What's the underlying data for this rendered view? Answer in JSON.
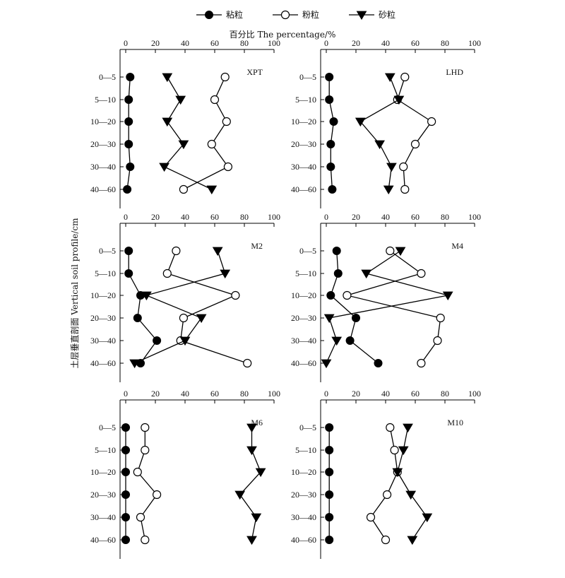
{
  "xlabel": "百分比 The percentage/%",
  "ylabel": "土层垂直剖面 Vertical soil profile/cm",
  "legend": [
    {
      "name": "粘粒",
      "marker": "filled-circle"
    },
    {
      "name": "粉粒",
      "marker": "open-circle"
    },
    {
      "name": "砂粒",
      "marker": "filled-triangle-down"
    }
  ],
  "chart_data": {
    "type": "line",
    "orientation": "vertical-profile",
    "categories": [
      "0—5",
      "5—10",
      "10—20",
      "20—30",
      "30—40",
      "40—60"
    ],
    "xlim": [
      0,
      100
    ],
    "xticks": [
      "0",
      "20",
      "40",
      "60",
      "80",
      "100"
    ],
    "legend_position": "top-center",
    "grid": false,
    "panels": [
      {
        "title": "XPT",
        "series": [
          {
            "name": "粘粒",
            "values": [
              3,
              2,
              2,
              2,
              3,
              1
            ]
          },
          {
            "name": "粉粒",
            "values": [
              67,
              60,
              68,
              58,
              69,
              39
            ]
          },
          {
            "name": "砂粒",
            "values": [
              28,
              37,
              28,
              39,
              26,
              58
            ]
          }
        ]
      },
      {
        "title": "LHD",
        "series": [
          {
            "name": "粘粒",
            "values": [
              2,
              2,
              5,
              3,
              3,
              4
            ]
          },
          {
            "name": "粉粒",
            "values": [
              53,
              48,
              71,
              60,
              52,
              53
            ]
          },
          {
            "name": "砂粒",
            "values": [
              43,
              49,
              23,
              36,
              44,
              42
            ]
          }
        ]
      },
      {
        "title": "M2",
        "series": [
          {
            "name": "粘粒",
            "values": [
              2,
              2,
              10,
              8,
              21,
              10
            ]
          },
          {
            "name": "粉粒",
            "values": [
              34,
              28,
              74,
              39,
              37,
              82
            ]
          },
          {
            "name": "砂粒",
            "values": [
              62,
              67,
              14,
              51,
              40,
              6
            ]
          }
        ]
      },
      {
        "title": "M4",
        "series": [
          {
            "name": "粘粒",
            "values": [
              7,
              8,
              3,
              20,
              16,
              35
            ]
          },
          {
            "name": "粉粒",
            "values": [
              43,
              64,
              14,
              77,
              75,
              64
            ]
          },
          {
            "name": "砂粒",
            "values": [
              50,
              27,
              82,
              2,
              7,
              0
            ]
          }
        ]
      },
      {
        "title": "M6",
        "series": [
          {
            "name": "粘粒",
            "values": [
              0,
              0,
              0,
              0,
              0,
              0
            ]
          },
          {
            "name": "粉粒",
            "values": [
              13,
              13,
              8,
              21,
              10,
              13
            ]
          },
          {
            "name": "砂粒",
            "values": [
              85,
              85,
              91,
              77,
              88,
              85
            ]
          }
        ]
      },
      {
        "title": "M10",
        "series": [
          {
            "name": "粘粒",
            "values": [
              2,
              2,
              2,
              2,
              2,
              2
            ]
          },
          {
            "name": "粉粒",
            "values": [
              43,
              46,
              48,
              41,
              30,
              40
            ]
          },
          {
            "name": "砂粒",
            "values": [
              55,
              52,
              48,
              57,
              68,
              58
            ]
          }
        ]
      }
    ]
  }
}
